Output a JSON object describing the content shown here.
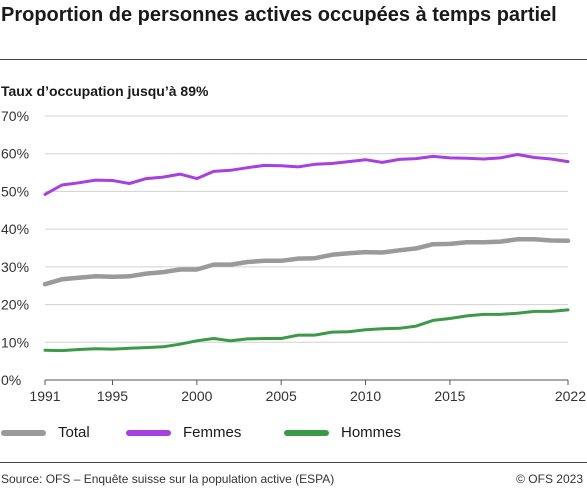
{
  "header": {
    "title": "Proportion de personnes actives occupées à temps partiel",
    "subtitle": "Taux d’occupation jusqu’à 89%"
  },
  "footer": {
    "source": "Source: OFS – Enquête suisse sur la population active (ESPA)",
    "copyright": "© OFS 2023"
  },
  "chart_data": {
    "type": "line",
    "title": "Proportion de personnes actives occupées à temps partiel",
    "subtitle": "Taux d’occupation jusqu’à 89%",
    "xlabel": "",
    "ylabel": "",
    "x": [
      1991,
      1992,
      1993,
      1994,
      1995,
      1996,
      1997,
      1998,
      1999,
      2000,
      2001,
      2002,
      2003,
      2004,
      2005,
      2006,
      2007,
      2008,
      2009,
      2010,
      2011,
      2012,
      2013,
      2014,
      2015,
      2016,
      2017,
      2018,
      2019,
      2020,
      2021,
      2022
    ],
    "x_ticks": [
      1991,
      1995,
      2000,
      2005,
      2010,
      2015,
      2022
    ],
    "xlim": [
      1991,
      2022
    ],
    "ylim": [
      0,
      70
    ],
    "y_ticks": [
      0,
      10,
      20,
      30,
      40,
      50,
      60,
      70
    ],
    "y_tick_labels": [
      "0%",
      "10%",
      "20%",
      "30%",
      "40%",
      "50%",
      "60%",
      "70%"
    ],
    "grid": true,
    "legend_position": "bottom",
    "series": [
      {
        "name": "Total",
        "color": "#9a9a9a",
        "values": [
          25.4,
          26.7,
          27.1,
          27.5,
          27.4,
          27.5,
          28.2,
          28.6,
          29.3,
          29.3,
          30.6,
          30.6,
          31.3,
          31.6,
          31.6,
          32.2,
          32.3,
          33.2,
          33.6,
          33.9,
          33.8,
          34.4,
          34.9,
          36.0,
          36.1,
          36.5,
          36.5,
          36.7,
          37.3,
          37.3,
          37.0,
          36.9
        ]
      },
      {
        "name": "Femmes",
        "color": "#a83fe0",
        "values": [
          49.2,
          51.7,
          52.3,
          53.0,
          52.9,
          52.1,
          53.4,
          53.8,
          54.6,
          53.4,
          55.3,
          55.6,
          56.3,
          56.9,
          56.8,
          56.5,
          57.2,
          57.4,
          57.9,
          58.4,
          57.7,
          58.5,
          58.7,
          59.3,
          58.9,
          58.8,
          58.6,
          58.9,
          59.8,
          59.0,
          58.6,
          57.9
        ]
      },
      {
        "name": "Hommes",
        "color": "#3a9a47",
        "values": [
          7.9,
          7.8,
          8.1,
          8.3,
          8.2,
          8.4,
          8.6,
          8.8,
          9.5,
          10.4,
          11.0,
          10.4,
          10.9,
          11.0,
          11.0,
          11.9,
          11.9,
          12.7,
          12.8,
          13.3,
          13.6,
          13.7,
          14.3,
          15.8,
          16.3,
          17.0,
          17.4,
          17.4,
          17.7,
          18.2,
          18.2,
          18.6
        ]
      }
    ]
  }
}
